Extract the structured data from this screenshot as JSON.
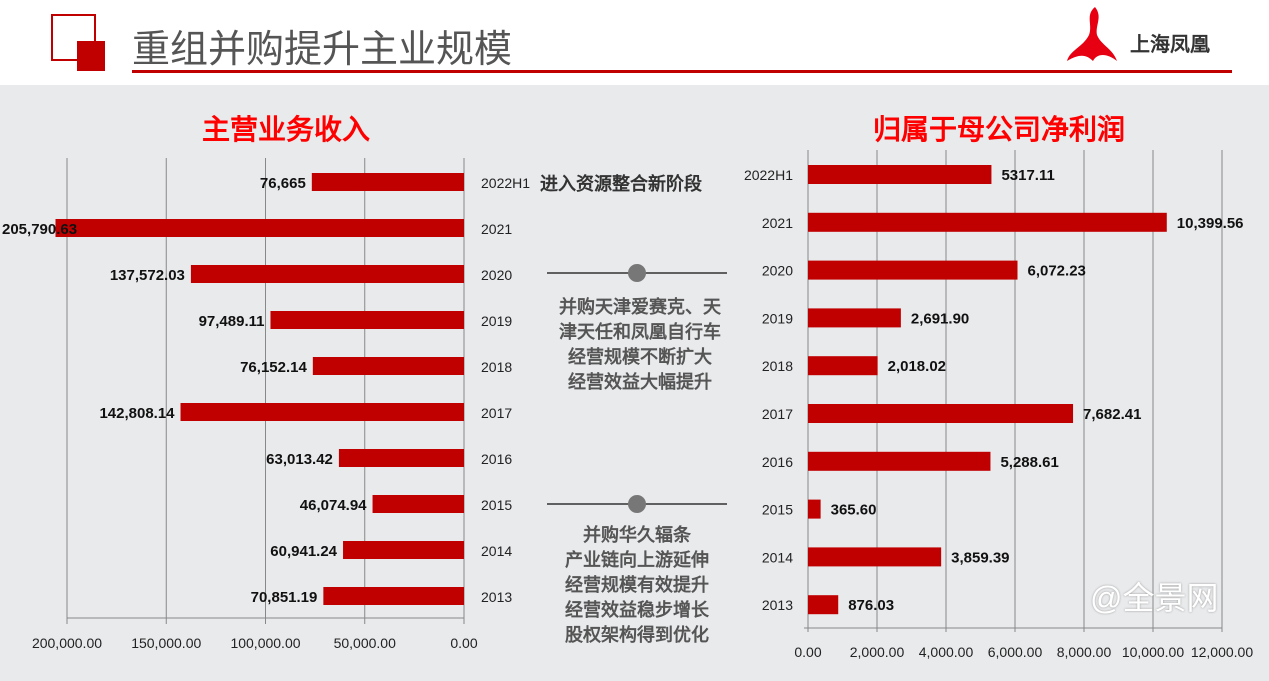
{
  "header": {
    "title": "重组并购提升主业规模",
    "logo_text": "上海凤凰"
  },
  "annotations": {
    "phase": "进入资源整合新阶段",
    "note1": [
      "并购天津爱赛克、天",
      "津天任和凤凰自行车",
      "经营规模不断扩大",
      "经营效益大幅提升"
    ],
    "note2": [
      "并购华久辐条",
      "产业链向上游延伸",
      "经营规模有效提升",
      "经营效益稳步增长",
      "股权架构得到优化"
    ]
  },
  "watermark": "@全景网",
  "colors": {
    "bar": "#c00000",
    "title": "#ff0000"
  },
  "chart_data": [
    {
      "type": "bar",
      "orientation": "horizontal",
      "title": "主营业务收入",
      "reversed_x": true,
      "categories": [
        "2022H1",
        "2021",
        "2020",
        "2019",
        "2018",
        "2017",
        "2016",
        "2015",
        "2014",
        "2013"
      ],
      "values": [
        76665,
        205790.63,
        137572.03,
        97489.11,
        76152.14,
        142808.14,
        63013.42,
        46074.94,
        60941.24,
        70851.19
      ],
      "data_labels": [
        "76,665",
        "205,790.63",
        "137,572.03",
        "97,489.11",
        "76,152.14",
        "142,808.14",
        "63,013.42",
        "46,074.94",
        "60,941.24",
        "70,851.19"
      ],
      "xlim": [
        0,
        200000
      ],
      "x_ticks": [
        "200,000.00",
        "150,000.00",
        "100,000.00",
        "50,000.00",
        "0.00"
      ],
      "grid": true
    },
    {
      "type": "bar",
      "orientation": "horizontal",
      "title": "归属于母公司净利润",
      "categories": [
        "2022H1",
        "2021",
        "2020",
        "2019",
        "2018",
        "2017",
        "2016",
        "2015",
        "2014",
        "2013"
      ],
      "values": [
        5317.11,
        10399.56,
        6072.23,
        2691.9,
        2018.02,
        7682.41,
        5288.61,
        365.6,
        3859.39,
        876.03
      ],
      "data_labels": [
        "5317.11",
        "10,399.56",
        "6,072.23",
        "2,691.90",
        "2,018.02",
        "7,682.41",
        "5,288.61",
        "365.60",
        "3,859.39",
        "876.03"
      ],
      "xlim": [
        0,
        12000
      ],
      "x_ticks": [
        "0.00",
        "2,000.00",
        "4,000.00",
        "6,000.00",
        "8,000.00",
        "10,000.00",
        "12,000.00"
      ],
      "grid": true
    }
  ]
}
